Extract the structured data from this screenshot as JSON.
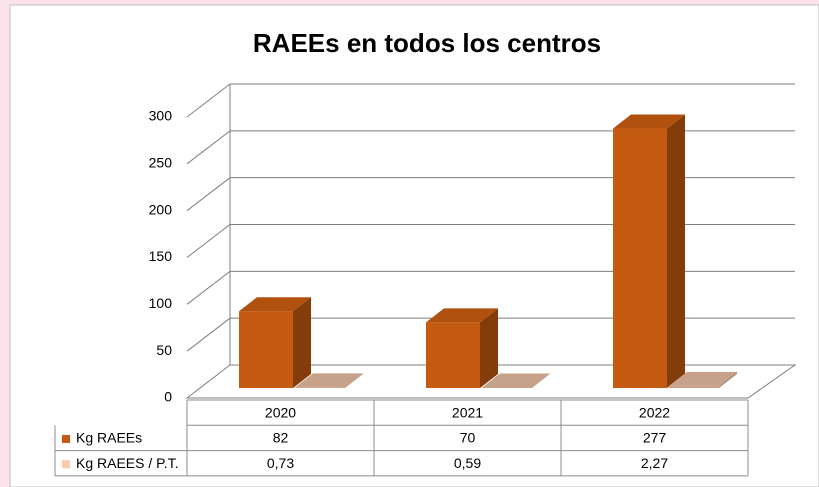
{
  "chart_data": {
    "type": "bar3d",
    "title": "RAEEs en todos los centros",
    "categories": [
      "2020",
      "2021",
      "2022"
    ],
    "series": [
      {
        "name": "Kg RAEEs",
        "color": "#c55a11",
        "values": [
          82,
          70,
          277
        ]
      },
      {
        "name": "Kg RAEES / P.T.",
        "color": "#f8cbad",
        "values": [
          0.73,
          0.59,
          2.27
        ],
        "value_labels": [
          "0,73",
          "0,59",
          "2,27"
        ]
      }
    ],
    "ylim": [
      0,
      300
    ],
    "yticks": [
      0,
      50,
      100,
      150,
      200,
      250,
      300
    ],
    "grid": true
  }
}
